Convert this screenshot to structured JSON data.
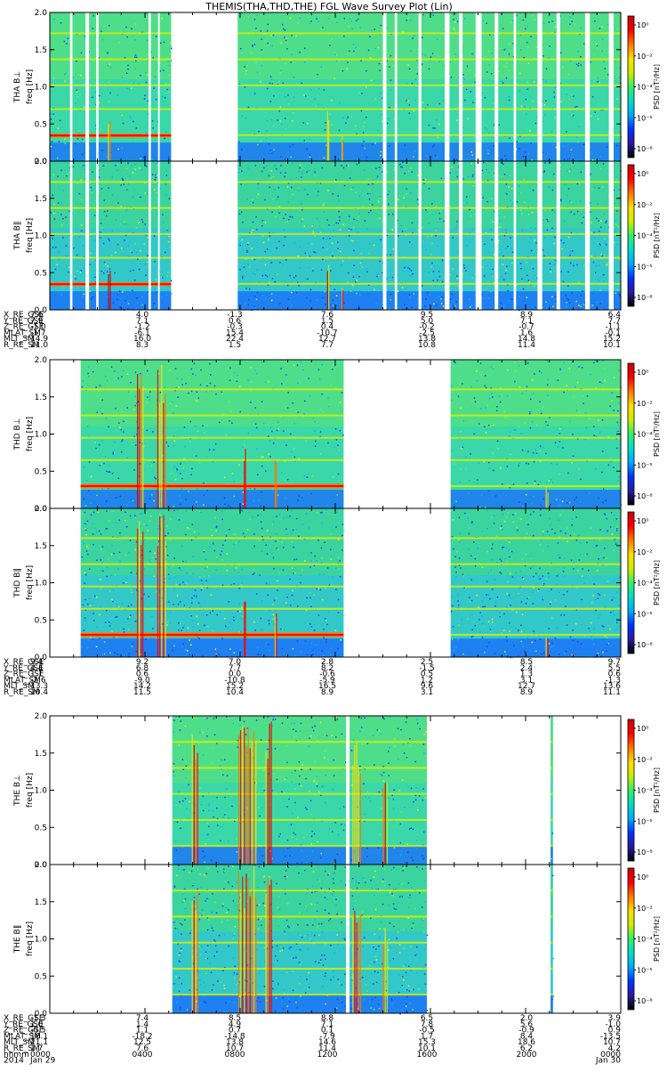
{
  "chart_data": {
    "type": "heatmap",
    "title": "THEMIS(THA,THD,THE) FGL Wave Survey Plot (Lin)",
    "freq_range_hz": [
      0.0,
      2.0
    ],
    "freq_ticks": [
      "0.0",
      "0.5",
      "1.0",
      "1.5",
      "2.0"
    ],
    "colorbar_label": "PSD [nT²/Hz]",
    "colorbar_ticks": [
      "10⁻⁸",
      "10⁻⁵",
      "10⁻⁴",
      "10⁻²",
      "10⁰"
    ],
    "colorbar_colors": [
      "#000000",
      "#2a1aa0",
      "#0033ff",
      "#00aaff",
      "#00ddcc",
      "#33ee66",
      "#ccee00",
      "#ffdd00",
      "#ff7700",
      "#ff0000",
      "#cc0000"
    ],
    "time_hours": [
      0,
      24
    ],
    "probes": [
      {
        "name": "THA",
        "panels": [
          {
            "id": "perp",
            "ylabel": "THA B⊥",
            "yunit": "freq [Hz]"
          },
          {
            "id": "par",
            "ylabel": "THA B∥",
            "yunit": "freq [Hz]"
          }
        ],
        "data_intervals_hr": [
          [
            0.0,
            5.1
          ],
          [
            7.9,
            24.0
          ]
        ],
        "gaps_hr": [
          [
            0.85,
            0.95
          ],
          [
            1.5,
            1.65
          ],
          [
            1.95,
            2.05
          ],
          [
            4.15,
            4.25
          ],
          [
            4.55,
            4.62
          ],
          [
            14.0,
            14.15
          ],
          [
            14.5,
            14.6
          ],
          [
            15.5,
            15.62
          ],
          [
            16.6,
            16.8
          ],
          [
            17.2,
            17.35
          ],
          [
            17.9,
            18.15
          ],
          [
            18.7,
            18.85
          ],
          [
            19.5,
            19.6
          ],
          [
            20.5,
            20.7
          ],
          [
            21.3,
            21.45
          ],
          [
            22.5,
            22.7
          ],
          [
            23.5,
            23.7
          ]
        ],
        "lines_hz": [
          0.35,
          0.7,
          1.02,
          1.37,
          1.72
        ],
        "hot_bands": [
          {
            "f_lo": 0.32,
            "f_hi": 0.37,
            "t0": 0.0,
            "t1": 5.1
          }
        ],
        "bursts_hr": [
          [
            2.5,
            0.15,
            0.55
          ],
          [
            11.7,
            0.1,
            0.7
          ],
          [
            12.3,
            0.05,
            0.35
          ]
        ],
        "ephemeris": {
          "labels": [
            "X_RE_GSE",
            "Y_RE_GSE",
            "Z_RE_GSE",
            "MLAT_SM",
            "MLT_SM",
            "R_RE_SM"
          ],
          "columns": [
            [
              "7.6",
              "7.9",
              "-1.0",
              "-1.7",
              "14.9",
              "11.0"
            ],
            [
              "4.0",
              "7.1",
              "-1.2",
              "-6.1",
              "16.0",
              "8.3"
            ],
            [
              "-1.3",
              "0.6",
              "-0.3",
              "15.4",
              "22.4",
              "1.5"
            ],
            [
              "7.6",
              "1.5",
              "0.4",
              "-10.7",
              "12.7",
              "7.7"
            ],
            [
              "9.5",
              "5.0",
              "-0.2",
              "-2.5",
              "13.8",
              "10.8"
            ],
            [
              "8.9",
              "7.1",
              "-0.7",
              "1.6",
              "14.8",
              "11.4"
            ],
            [
              "6.4",
              "7.7",
              "-1.1",
              "-0.1",
              "15.2",
              "10.1"
            ]
          ]
        }
      },
      {
        "name": "THD",
        "panels": [
          {
            "id": "perp",
            "ylabel": "THD B⊥",
            "yunit": "freq [Hz]"
          },
          {
            "id": "par",
            "ylabel": "THD B∥",
            "yunit": "freq [Hz]"
          }
        ],
        "data_intervals_hr": [
          [
            1.3,
            12.35
          ],
          [
            16.85,
            24.0
          ]
        ],
        "gaps_hr": [],
        "lines_hz": [
          0.3,
          0.65,
          0.95,
          1.25,
          1.6
        ],
        "hot_bands": [
          {
            "f_lo": 0.27,
            "f_hi": 0.33,
            "t0": 1.3,
            "t1": 12.35
          }
        ],
        "bursts_hr": [
          [
            3.8,
            0.3,
            2.0
          ],
          [
            4.7,
            0.4,
            2.0
          ],
          [
            8.2,
            0.1,
            0.9
          ],
          [
            9.5,
            0.1,
            0.7
          ],
          [
            20.9,
            0.15,
            0.3
          ]
        ],
        "ephemeris": {
          "labels": [
            "X_RE_GSE",
            "Y_RE_GSE",
            "Z_RE_GSE",
            "MLAT_SM",
            "MLT_SM",
            "R_RE_SM"
          ],
          "columns": [
            [
              "9.4",
              "4.4",
              "1.1",
              "-2.6",
              "13.3",
              "10.4"
            ],
            [
              "9.2",
              "6.8",
              "0.6",
              "-9.0",
              "14.2",
              "11.5"
            ],
            [
              "7.0",
              "7.7",
              "0.0",
              "-10.8",
              "15.2",
              "10.4"
            ],
            [
              "2.8",
              "8.2",
              "-0.6",
              "-5.9",
              "16.5",
              "8.9"
            ],
            [
              "2.5",
              "-1.5",
              "0.5",
              "1.2",
              "9.6",
              "3.1"
            ],
            [
              "8.5",
              "2.4",
              "1.3",
              "3.1",
              "12.7",
              "8.9"
            ],
            [
              "9.7",
              "5.5",
              "0.6",
              "-1.3",
              "13.6",
              "11.1"
            ]
          ]
        }
      },
      {
        "name": "THE",
        "panels": [
          {
            "id": "perp",
            "ylabel": "THE B⊥",
            "yunit": "freq [Hz]"
          },
          {
            "id": "par",
            "ylabel": "THE B∥",
            "yunit": "freq [Hz]"
          }
        ],
        "data_intervals_hr": [
          [
            5.15,
            15.85
          ],
          [
            21.05,
            21.15
          ]
        ],
        "gaps_hr": [
          [
            12.45,
            12.6
          ]
        ],
        "lines_hz": [
          0.25,
          0.6,
          0.95,
          1.3,
          1.65
        ],
        "hot_bands": [],
        "bursts_hr": [
          [
            6.1,
            0.3,
            1.8
          ],
          [
            8.3,
            0.8,
            2.0
          ],
          [
            9.2,
            0.3,
            2.0
          ],
          [
            12.9,
            0.4,
            1.7
          ],
          [
            14.1,
            0.25,
            1.3
          ]
        ],
        "ephemeris": {
          "labels": [
            "X_RE_GSE",
            "Y_RE_GSE",
            "Z_RE_GSE",
            "MLAT_SM",
            "MLT_SM",
            "R_RE_SM",
            "hhmm",
            "2014"
          ],
          "columns": [
            [
              "-1.3",
              "1.0",
              "-0.5",
              "16.1",
              "21.1",
              "1.7",
              "0000",
              "Jan 29"
            ],
            [
              "7.4",
              "1.4",
              "1.1",
              "-18.2",
              "12.5",
              "7.6",
              "0400",
              ""
            ],
            [
              "8.5",
              "4.9",
              "0.7",
              "-14.8",
              "13.8",
              "10.7",
              "0800",
              ""
            ],
            [
              "8.8",
              "7.1",
              "0.1",
              "-7.9",
              "14.6",
              "11.4",
              "1200",
              ""
            ],
            [
              "6.5",
              "7.8",
              "-0.5",
              "1.7",
              "15.3",
              "10.1",
              "1600",
              ""
            ],
            [
              "2.0",
              "5.6",
              "-0.9",
              "8.4",
              "18.6",
              "6.2",
              "2000",
              ""
            ],
            [
              "3.9",
              "-1.0",
              "0.9",
              "-13.5",
              "10.7",
              "4.2",
              "0000",
              "Jan 30"
            ]
          ]
        }
      }
    ]
  }
}
